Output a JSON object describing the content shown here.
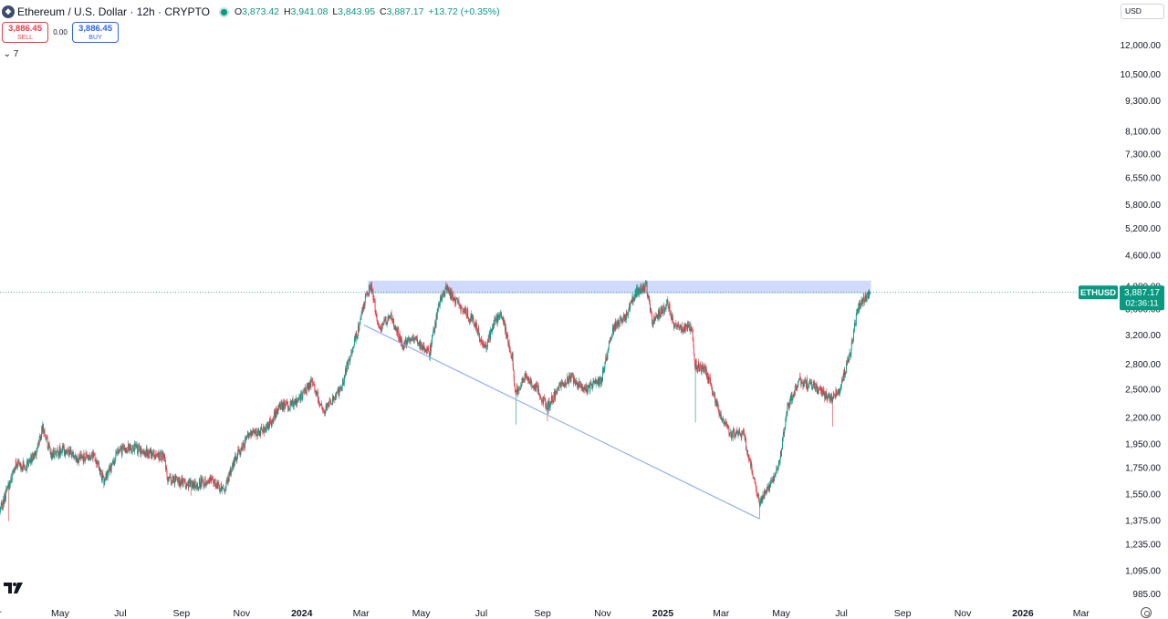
{
  "header": {
    "symbol_icon": "ethereum-icon",
    "title": "Ethereum / U.S. Dollar · 12h · CRYPTO",
    "open_key": "O",
    "open": "3,873.42",
    "high_key": "H",
    "high": "3,941.08",
    "low_key": "L",
    "low": "3,843.95",
    "close_key": "C",
    "close": "3,887.17",
    "change": "+13.72 (+0.35%)"
  },
  "trade": {
    "sell_price": "3,886.45",
    "sell_label": "SELL",
    "spread": "0.00",
    "buy_price": "3,886.45",
    "buy_label": "BUY"
  },
  "indicators_toggle": {
    "icon": "chevron-down-icon",
    "count": "7"
  },
  "currency": "USD",
  "colors": {
    "up": "#089981",
    "down": "#f23645",
    "trendline": "#90b0f0",
    "zone_fill": "#c7d4fb",
    "price_line": "#089981",
    "label_bg": "#089981"
  },
  "chart_data": {
    "type": "candlestick",
    "symbol": "ETHUSD",
    "interval": "12h",
    "y_scale": "log",
    "ylim": [
      950,
      13000
    ],
    "y_ticks": [
      12000,
      10500,
      9300,
      8100,
      7300,
      6550,
      5800,
      5200,
      4600,
      4000,
      3600,
      3200,
      2800,
      2500,
      2200,
      1950,
      1750,
      1550,
      1375,
      1235,
      1095,
      985
    ],
    "y_tick_labels": [
      "12,000.00",
      "10,500.00",
      "9,300.00",
      "8,100.00",
      "7,300.00",
      "6,550.00",
      "5,800.00",
      "5,200.00",
      "4,600.00",
      "4,000.00",
      "3,600.00",
      "3,200.00",
      "2,800.00",
      "2,500.00",
      "2,200.00",
      "1,950.00",
      "1,750.00",
      "1,550.00",
      "1,375.00",
      "1,235.00",
      "1,095.00",
      "985.00"
    ],
    "x_range": [
      "2023-03-01",
      "2026-04-10"
    ],
    "x_ticks": [
      {
        "date": "2023-03-01",
        "label": "r",
        "bold": false
      },
      {
        "date": "2023-05-01",
        "label": "May",
        "bold": false
      },
      {
        "date": "2023-07-01",
        "label": "Jul",
        "bold": false
      },
      {
        "date": "2023-09-01",
        "label": "Sep",
        "bold": false
      },
      {
        "date": "2023-11-01",
        "label": "Nov",
        "bold": false
      },
      {
        "date": "2024-01-01",
        "label": "2024",
        "bold": true
      },
      {
        "date": "2024-03-01",
        "label": "Mar",
        "bold": false
      },
      {
        "date": "2024-05-01",
        "label": "May",
        "bold": false
      },
      {
        "date": "2024-07-01",
        "label": "Jul",
        "bold": false
      },
      {
        "date": "2024-09-01",
        "label": "Sep",
        "bold": false
      },
      {
        "date": "2024-11-01",
        "label": "Nov",
        "bold": false
      },
      {
        "date": "2025-01-01",
        "label": "2025",
        "bold": true
      },
      {
        "date": "2025-03-01",
        "label": "Mar",
        "bold": false
      },
      {
        "date": "2025-05-01",
        "label": "May",
        "bold": false
      },
      {
        "date": "2025-07-01",
        "label": "Jul",
        "bold": false
      },
      {
        "date": "2025-09-01",
        "label": "Sep",
        "bold": false
      },
      {
        "date": "2025-11-01",
        "label": "Nov",
        "bold": false
      },
      {
        "date": "2026-01-01",
        "label": "2026",
        "bold": true
      },
      {
        "date": "2026-03-01",
        "label": "Mar",
        "bold": false
      }
    ],
    "path": [
      [
        "2023-03-01",
        1420
      ],
      [
        "2023-03-08",
        1560
      ],
      [
        "2023-03-18",
        1780
      ],
      [
        "2023-03-28",
        1760
      ],
      [
        "2023-04-06",
        1860
      ],
      [
        "2023-04-14",
        2100
      ],
      [
        "2023-04-22",
        1860
      ],
      [
        "2023-05-05",
        1900
      ],
      [
        "2023-05-20",
        1820
      ],
      [
        "2023-06-05",
        1860
      ],
      [
        "2023-06-15",
        1640
      ],
      [
        "2023-06-30",
        1890
      ],
      [
        "2023-07-15",
        1920
      ],
      [
        "2023-08-01",
        1860
      ],
      [
        "2023-08-15",
        1840
      ],
      [
        "2023-08-18",
        1660
      ],
      [
        "2023-09-01",
        1640
      ],
      [
        "2023-09-15",
        1620
      ],
      [
        "2023-10-01",
        1660
      ],
      [
        "2023-10-15",
        1580
      ],
      [
        "2023-10-25",
        1800
      ],
      [
        "2023-11-10",
        2050
      ],
      [
        "2023-11-25",
        2080
      ],
      [
        "2023-12-10",
        2300
      ],
      [
        "2023-12-28",
        2350
      ],
      [
        "2024-01-12",
        2600
      ],
      [
        "2024-01-23",
        2250
      ],
      [
        "2024-02-10",
        2500
      ],
      [
        "2024-02-28",
        3300
      ],
      [
        "2024-03-06",
        3800
      ],
      [
        "2024-03-12",
        4000
      ],
      [
        "2024-03-20",
        3300
      ],
      [
        "2024-04-01",
        3500
      ],
      [
        "2024-04-13",
        3050
      ],
      [
        "2024-04-25",
        3150
      ],
      [
        "2024-05-10",
        2950
      ],
      [
        "2024-05-20",
        3700
      ],
      [
        "2024-05-27",
        3950
      ],
      [
        "2024-06-10",
        3650
      ],
      [
        "2024-06-24",
        3400
      ],
      [
        "2024-07-05",
        3000
      ],
      [
        "2024-07-15",
        3400
      ],
      [
        "2024-07-22",
        3500
      ],
      [
        "2024-08-02",
        2900
      ],
      [
        "2024-08-05",
        2450
      ],
      [
        "2024-08-15",
        2650
      ],
      [
        "2024-08-28",
        2500
      ],
      [
        "2024-09-06",
        2300
      ],
      [
        "2024-09-20",
        2550
      ],
      [
        "2024-10-01",
        2650
      ],
      [
        "2024-10-15",
        2500
      ],
      [
        "2024-10-31",
        2600
      ],
      [
        "2024-11-12",
        3300
      ],
      [
        "2024-11-25",
        3500
      ],
      [
        "2024-12-06",
        3900
      ],
      [
        "2024-12-16",
        4000
      ],
      [
        "2024-12-22",
        3400
      ],
      [
        "2025-01-06",
        3700
      ],
      [
        "2025-01-15",
        3300
      ],
      [
        "2025-01-31",
        3300
      ],
      [
        "2025-02-03",
        2800
      ],
      [
        "2025-02-15",
        2700
      ],
      [
        "2025-02-28",
        2250
      ],
      [
        "2025-03-10",
        2050
      ],
      [
        "2025-03-24",
        2050
      ],
      [
        "2025-04-09",
        1500
      ],
      [
        "2025-04-20",
        1600
      ],
      [
        "2025-04-30",
        1800
      ],
      [
        "2025-05-08",
        2300
      ],
      [
        "2025-05-20",
        2600
      ],
      [
        "2025-06-01",
        2550
      ],
      [
        "2025-06-20",
        2400
      ],
      [
        "2025-06-30",
        2500
      ],
      [
        "2025-07-10",
        2900
      ],
      [
        "2025-07-18",
        3600
      ],
      [
        "2025-07-25",
        3750
      ],
      [
        "2025-07-30",
        3887
      ]
    ],
    "spikes": [
      [
        "2023-03-10",
        1370,
        "low"
      ],
      [
        "2023-09-11",
        1540,
        "low"
      ],
      [
        "2024-08-05",
        2130,
        "low"
      ],
      [
        "2024-09-06",
        2160,
        "low"
      ],
      [
        "2025-02-03",
        2150,
        "low"
      ],
      [
        "2025-04-09",
        1385,
        "low"
      ],
      [
        "2025-06-22",
        2110,
        "low"
      ],
      [
        "2024-03-12",
        4090,
        "high"
      ],
      [
        "2024-12-16",
        4100,
        "high"
      ],
      [
        "2024-05-27",
        3980,
        "high"
      ]
    ],
    "resistance_zone": {
      "x_start": "2024-03-08",
      "x_end": "2025-07-31",
      "y_low": 3870,
      "y_high": 4100
    },
    "trendline": {
      "start": [
        "2024-03-04",
        3350
      ],
      "end": [
        "2025-04-09",
        1385
      ]
    },
    "last_price": {
      "symbol_label": "ETHUSD",
      "value": 3887.17,
      "value_label": "3,887.17",
      "countdown": "02:36:11"
    }
  }
}
